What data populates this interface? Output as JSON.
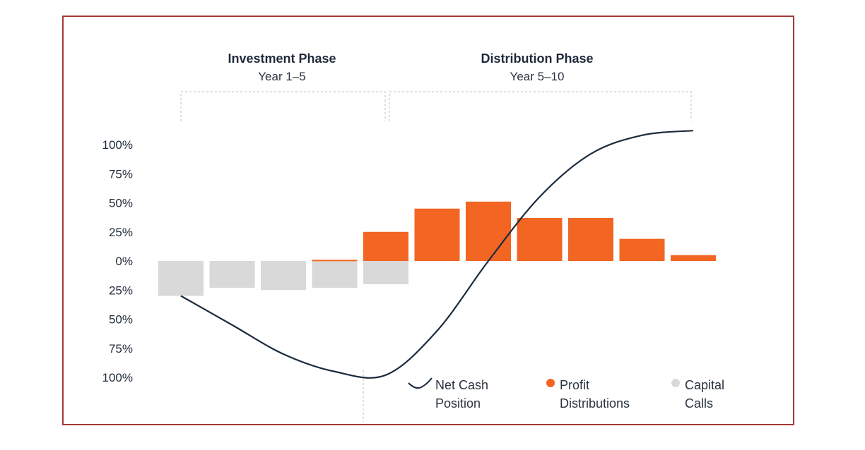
{
  "phases": [
    {
      "title": "Investment Phase",
      "subtitle": "Year 1–5"
    },
    {
      "title": "Distribution Phase",
      "subtitle": "Year 5–10"
    }
  ],
  "colors": {
    "profit": "#f26522",
    "capital": "#d9d9d9",
    "line": "#1c2b3d",
    "frame": "#a33a35"
  },
  "legend": [
    {
      "key": "net",
      "line1": "Net Cash",
      "line2": "Position",
      "icon": "line-curve-icon"
    },
    {
      "key": "profit",
      "line1": "Profit",
      "line2": "Distributions",
      "icon": "orange-dot-icon"
    },
    {
      "key": "capital",
      "line1": "Capital",
      "line2": "Calls",
      "icon": "gray-dot-icon"
    }
  ],
  "chart_data": {
    "type": "bar",
    "yticks": [
      {
        "value": 100,
        "label": "100%"
      },
      {
        "value": 75,
        "label": "75%"
      },
      {
        "value": 50,
        "label": "50%"
      },
      {
        "value": 25,
        "label": "25%"
      },
      {
        "value": 0,
        "label": "0%"
      },
      {
        "value": -25,
        "label": "25%"
      },
      {
        "value": -50,
        "label": "50%"
      },
      {
        "value": -75,
        "label": "75%"
      },
      {
        "value": -100,
        "label": "100%"
      }
    ],
    "ylim": [
      -100,
      100
    ],
    "series": [
      {
        "name": "Profit Distributions",
        "values": [
          0,
          0,
          0,
          1,
          25,
          45,
          51,
          37,
          37,
          19,
          5
        ]
      },
      {
        "name": "Capital Calls",
        "values": [
          -30,
          -23,
          -25,
          -23,
          -20,
          0,
          0,
          0,
          0,
          0,
          0
        ]
      },
      {
        "name": "Net Cash Position",
        "values": [
          -30,
          -55,
          -80,
          -95,
          -98,
          -60,
          0,
          55,
          92,
          108,
          112
        ]
      }
    ]
  }
}
